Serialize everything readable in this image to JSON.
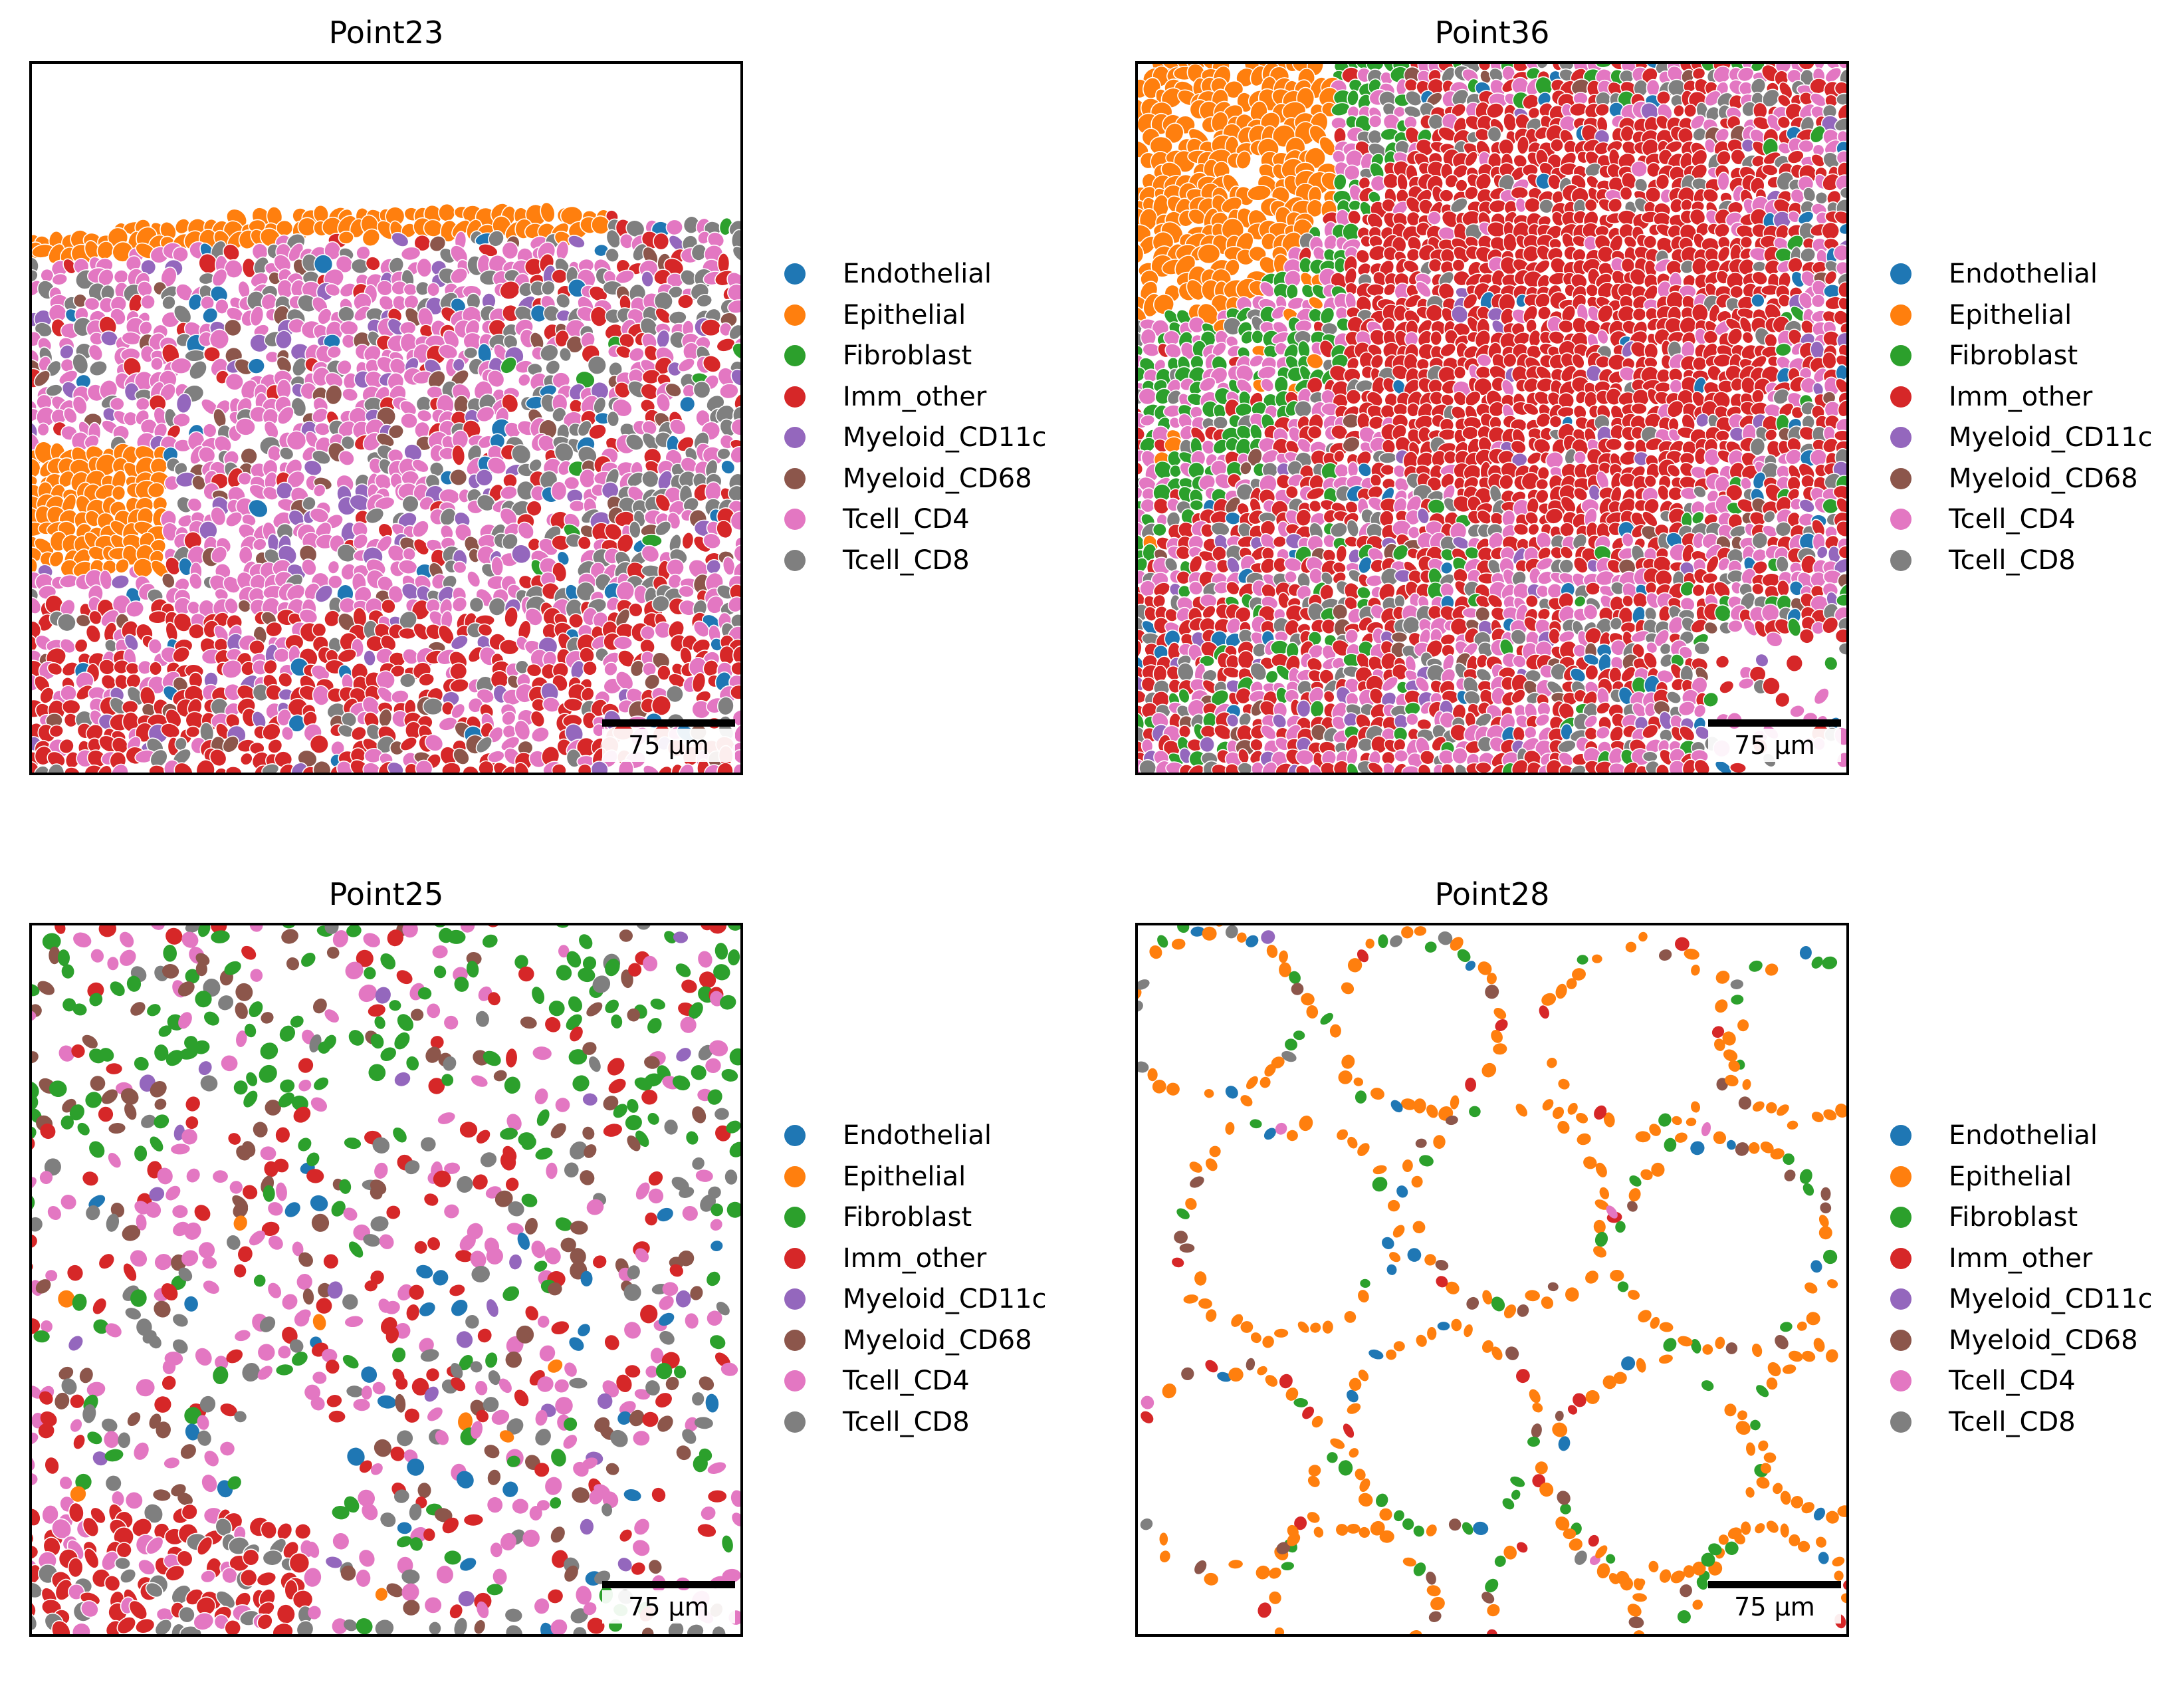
{
  "legend": {
    "items": [
      {
        "label": "Endothelial",
        "color": "#1f77b4"
      },
      {
        "label": "Epithelial",
        "color": "#ff7f0e"
      },
      {
        "label": "Fibroblast",
        "color": "#2ca02c"
      },
      {
        "label": "Imm_other",
        "color": "#d62728"
      },
      {
        "label": "Myeloid_CD11c",
        "color": "#9467bd"
      },
      {
        "label": "Myeloid_CD68",
        "color": "#8c564b"
      },
      {
        "label": "Tcell_CD4",
        "color": "#e377c2"
      },
      {
        "label": "Tcell_CD8",
        "color": "#7f7f7f"
      }
    ]
  },
  "panels": [
    {
      "title": "Point23",
      "scale_label": "75 µm"
    },
    {
      "title": "Point36",
      "scale_label": "75 µm"
    },
    {
      "title": "Point25",
      "scale_label": "75 µm"
    },
    {
      "title": "Point28",
      "scale_label": "75 µm"
    }
  ]
}
